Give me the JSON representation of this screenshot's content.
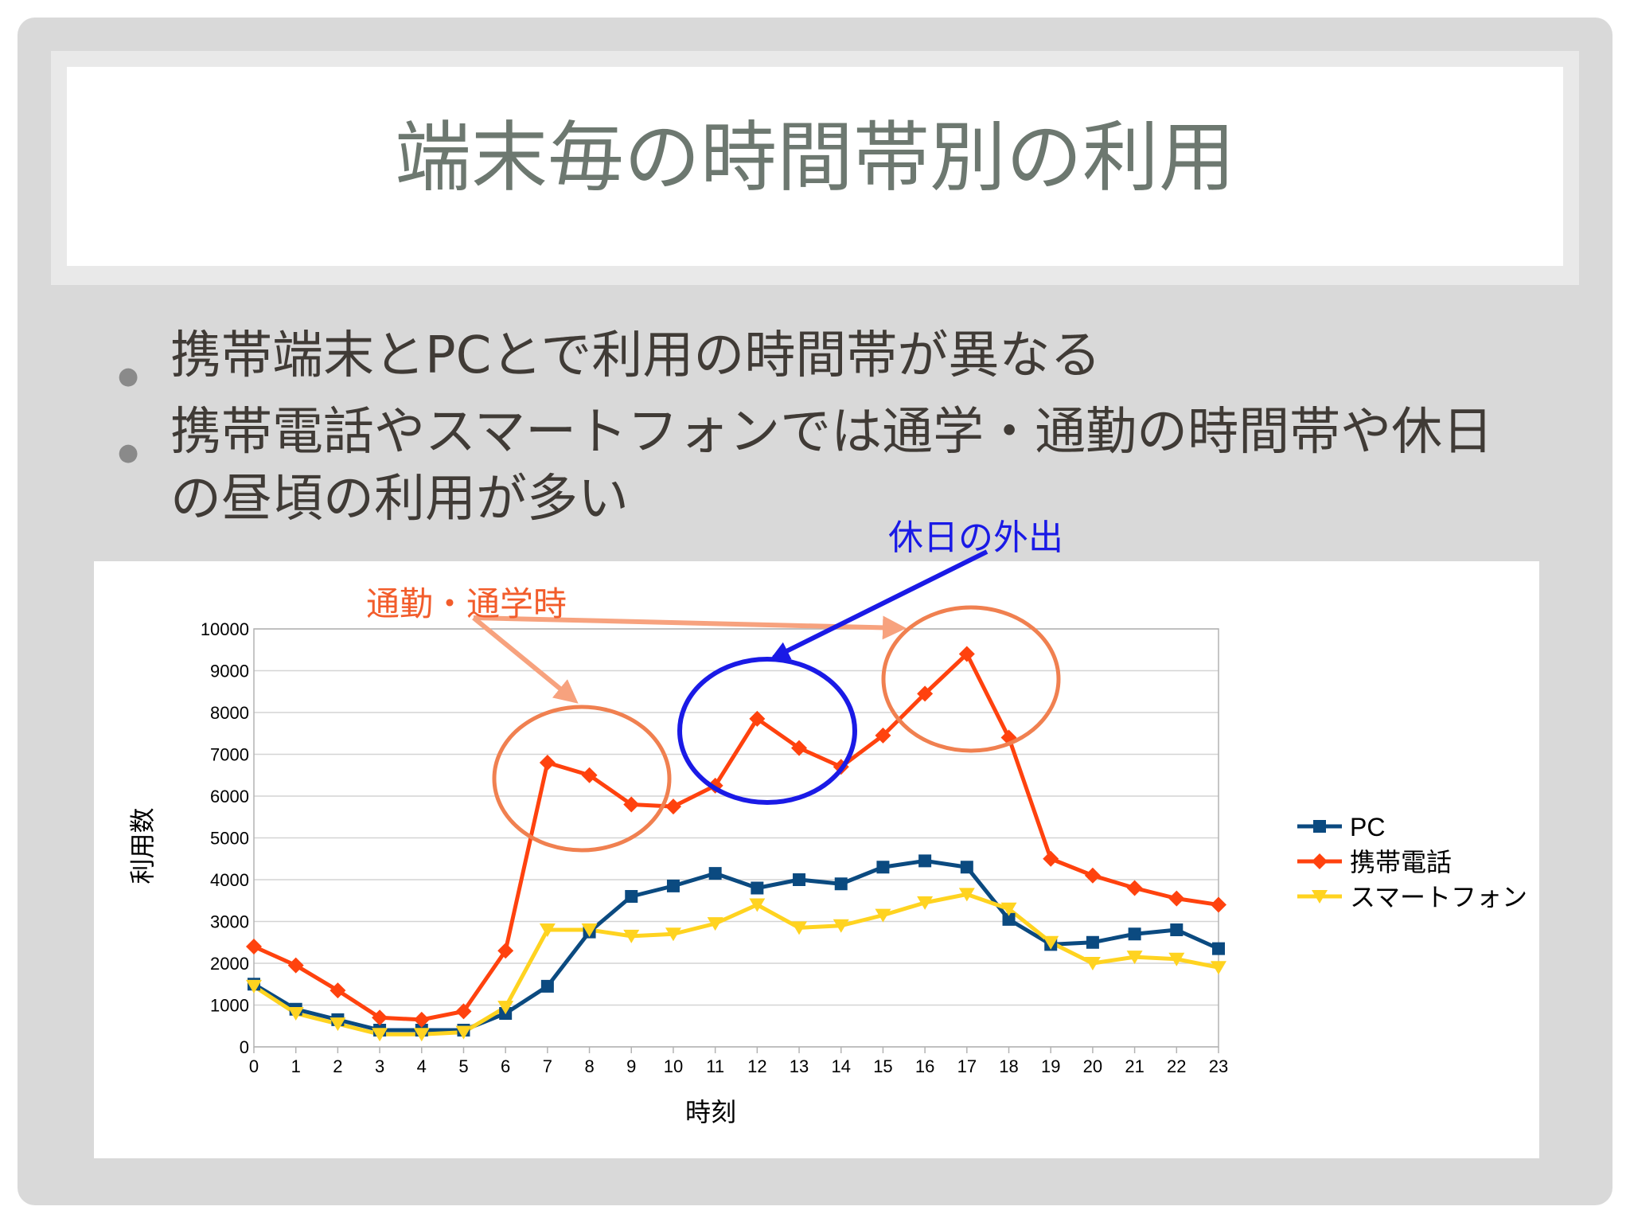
{
  "slide": {
    "title": "端末毎の時間帯別の利用",
    "bullets": [
      "携帯端末とPCとで利用の時間帯が異なる",
      "携帯電話やスマートフォンでは通学・通勤の時間帯や休日の昼頃の利用が多い"
    ]
  },
  "annotations": {
    "commute_label": "通勤・通学時",
    "holiday_label": "休日の外出",
    "commute_color": "#f25c2b",
    "holiday_color": "#1a1ae6",
    "ellipse_color": "#f08050"
  },
  "chart_data": {
    "type": "line",
    "x": [
      0,
      1,
      2,
      3,
      4,
      5,
      6,
      7,
      8,
      9,
      10,
      11,
      12,
      13,
      14,
      15,
      16,
      17,
      18,
      19,
      20,
      21,
      22,
      23
    ],
    "xlabel": "時刻",
    "ylabel": "利用数",
    "ylim": [
      0,
      10000
    ],
    "yticks": [
      0,
      1000,
      2000,
      3000,
      4000,
      5000,
      6000,
      7000,
      8000,
      9000,
      10000
    ],
    "grid": true,
    "legend_position": "right",
    "series": [
      {
        "name": "PC",
        "color": "#0b4a80",
        "marker": "square",
        "values": [
          1500,
          900,
          650,
          400,
          400,
          400,
          800,
          1450,
          2750,
          3600,
          3850,
          4150,
          3800,
          4000,
          3900,
          4300,
          4450,
          4300,
          3050,
          2450,
          2500,
          2700,
          2800,
          2350
        ]
      },
      {
        "name": "携帯電話",
        "color": "#ff420e",
        "marker": "diamond",
        "values": [
          2400,
          1950,
          1350,
          700,
          650,
          850,
          2300,
          6800,
          6500,
          5800,
          5750,
          6250,
          7850,
          7150,
          6700,
          7450,
          8450,
          9400,
          7400,
          4500,
          4100,
          3800,
          3550,
          3400
        ]
      },
      {
        "name": "スマートフォン",
        "color": "#ffd320",
        "marker": "triangle",
        "values": [
          1450,
          800,
          550,
          300,
          300,
          350,
          950,
          2800,
          2800,
          2650,
          2700,
          2950,
          3400,
          2850,
          2900,
          3150,
          3450,
          3650,
          3300,
          2500,
          2000,
          2150,
          2100,
          1900
        ]
      }
    ]
  }
}
